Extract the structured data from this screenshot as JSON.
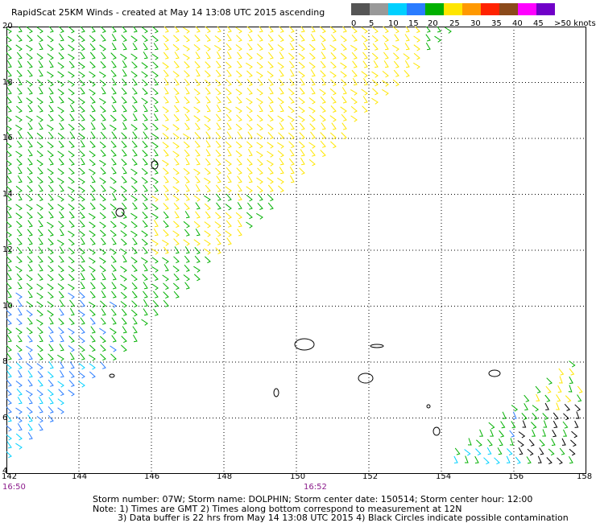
{
  "header": {
    "title": "RapidScat 25KM Winds - created at May 14 13:08 UTC 2015 ascending"
  },
  "legend": {
    "labels": [
      "0",
      "5",
      "10",
      "15",
      "20",
      "25",
      "30",
      "35",
      "40",
      "45",
      ">50 knots"
    ],
    "colors": [
      "#555555",
      "#999999",
      "#00d0ff",
      "#2a7cff",
      "#00b000",
      "#ffe600",
      "#ff9900",
      "#ff2200",
      "#8b4a1a",
      "#ff00ff",
      "#7000c8"
    ]
  },
  "axes": {
    "lat_labels": [
      "20",
      "18",
      "16",
      "14",
      "12",
      "10",
      "8",
      "6",
      "4"
    ],
    "lon_labels": [
      "142",
      "144",
      "146",
      "148",
      "150",
      "152",
      "154",
      "156",
      "158"
    ],
    "lat_range": [
      4,
      20
    ],
    "lon_range": [
      142,
      158
    ]
  },
  "times": [
    "16:50",
    "16:52"
  ],
  "footer": {
    "line1": "Storm number: 07W;  Storm name: DOLPHIN;  Storm center date: 150514;  Storm center hour: 12:00",
    "line2": "Note: 1) Times are GMT  2) Times along bottom correspond to measurement at 12N",
    "line3": "3) Data buffer is 22 hrs from May 14 13:08 UTC 2015  4) Black Circles indicate possible contamination"
  }
}
